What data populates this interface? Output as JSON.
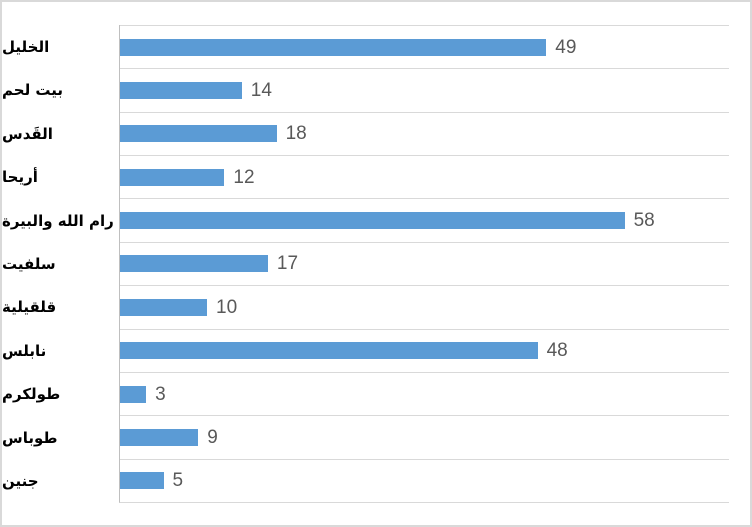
{
  "chart_data": {
    "type": "bar",
    "orientation": "horizontal",
    "title": "",
    "xlabel": "",
    "ylabel": "",
    "categories": [
      "الخليل",
      "بيت لحم",
      "القَدس",
      "أريحا",
      "رام الله والبيرة",
      "سلفيت",
      "قلقيلية",
      "نابلس",
      "طولكرم",
      "طوباس",
      "جنين"
    ],
    "values": [
      49,
      14,
      18,
      12,
      58,
      17,
      10,
      48,
      3,
      9,
      5
    ],
    "xlim": [
      0,
      70
    ],
    "value_labels_position": "outside-end",
    "gridlines": "category-horizontal",
    "value_axis_labels_visible": false,
    "legend": "none",
    "colors": {
      "bar": "#5B9BD5",
      "gridline": "#D9D9D9",
      "axis_line": "#BFBFBF",
      "value_label": "#595959",
      "category_label": "#000000",
      "chart_border": "#D9D9D9",
      "background": "#FFFFFF"
    }
  }
}
